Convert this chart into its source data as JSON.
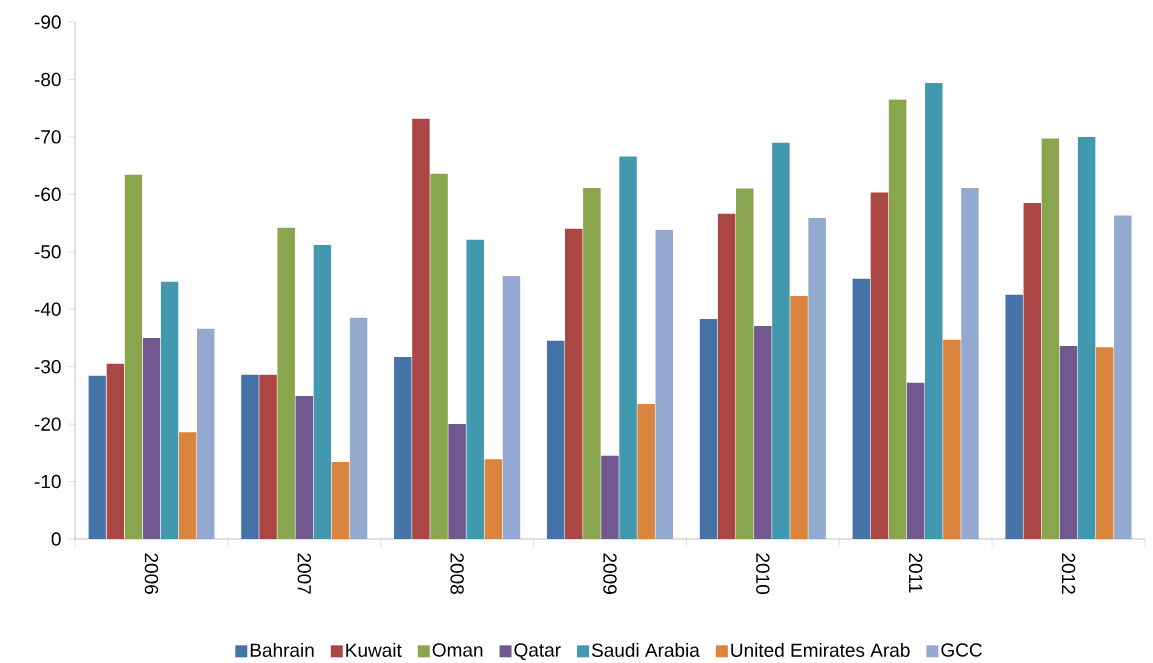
{
  "chart_data": {
    "type": "bar",
    "categories": [
      "2006",
      "2007",
      "2008",
      "2009",
      "2010",
      "2011",
      "2012"
    ],
    "series": [
      {
        "name": "Bahrain",
        "color": "#4572a7",
        "values": [
          -28.4,
          -28.6,
          -31.7,
          -34.5,
          -38.3,
          -45.3,
          -42.5
        ]
      },
      {
        "name": "Kuwait",
        "color": "#aa4643",
        "values": [
          -30.5,
          -28.6,
          -73.2,
          -54.0,
          -56.6,
          -60.3,
          -58.5
        ]
      },
      {
        "name": "Oman",
        "color": "#89a54e",
        "values": [
          -63.4,
          -54.2,
          -63.6,
          -61.1,
          -61.0,
          -76.5,
          -69.7
        ]
      },
      {
        "name": "Qatar",
        "color": "#71588f",
        "values": [
          -35.0,
          -24.9,
          -20.0,
          -14.5,
          -37.1,
          -27.2,
          -33.6
        ]
      },
      {
        "name": "Saudi Arabia",
        "color": "#4198af",
        "values": [
          -44.8,
          -51.2,
          -52.1,
          -66.6,
          -69.0,
          -79.4,
          -70.0
        ]
      },
      {
        "name": "United Emirates Arab",
        "color": "#db843d",
        "values": [
          -18.6,
          -13.4,
          -13.9,
          -23.5,
          -42.3,
          -34.7,
          -33.4
        ]
      },
      {
        "name": "GCC",
        "color": "#93a9cf",
        "values": [
          -36.6,
          -38.5,
          -45.8,
          -53.8,
          -55.9,
          -61.1,
          -56.3
        ]
      }
    ],
    "ylim": [
      0,
      -90
    ],
    "yticks": [
      0,
      -10,
      -20,
      -30,
      -40,
      -50,
      -60,
      -70,
      -80,
      -90
    ],
    "grid": false,
    "legend": "bottom"
  }
}
